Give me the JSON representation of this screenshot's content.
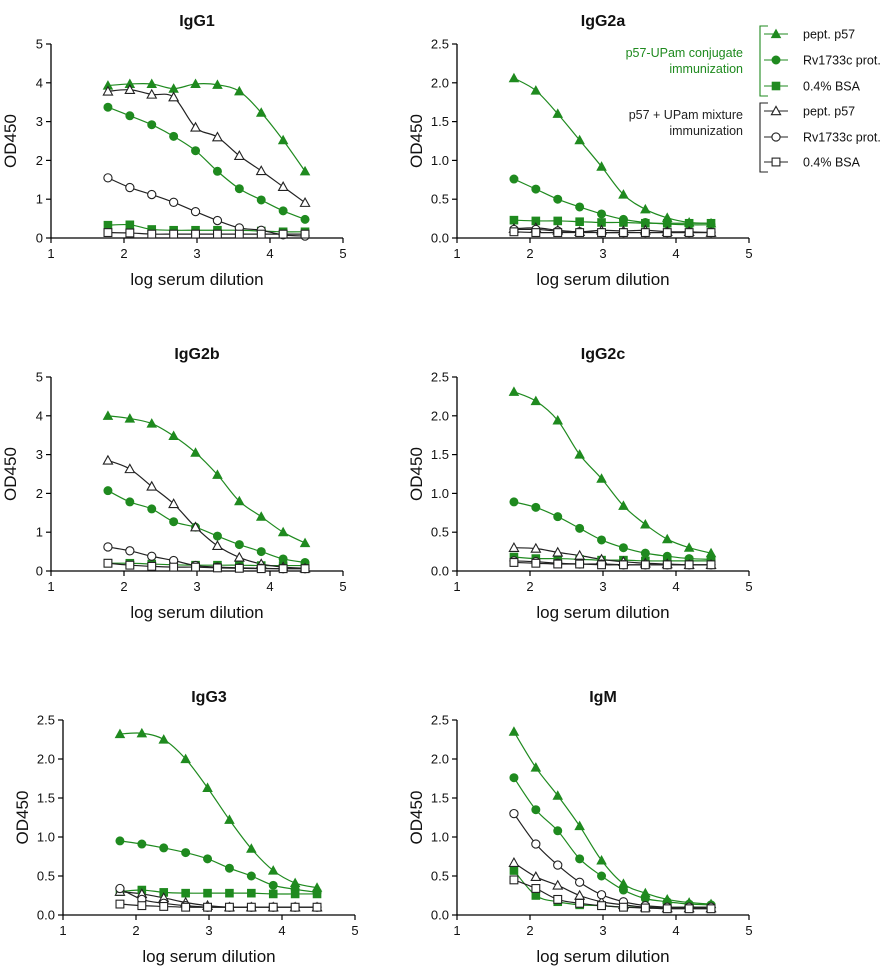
{
  "colors": {
    "conjugate": "#1f8a1f",
    "mixture": "#222222"
  },
  "legend": {
    "groups": [
      {
        "key": "conjugate",
        "title_lines": [
          "p57-UPam conjugate",
          "immunization"
        ],
        "items": [
          {
            "label": "pept. p57",
            "marker": "triangle",
            "filled": true
          },
          {
            "label": "Rv1733c prot.",
            "marker": "circle",
            "filled": true
          },
          {
            "label": "0.4% BSA",
            "marker": "square",
            "filled": true
          }
        ]
      },
      {
        "key": "mixture",
        "title_lines": [
          "p57 + UPam mixture",
          "immunization"
        ],
        "items": [
          {
            "label": "pept. p57",
            "marker": "triangle",
            "filled": false
          },
          {
            "label": "Rv1733c prot.",
            "marker": "circle",
            "filled": false
          },
          {
            "label": "0.4% BSA",
            "marker": "square",
            "filled": false
          }
        ]
      }
    ]
  },
  "chart_data": [
    {
      "type": "scatter",
      "title": "IgG1",
      "xlabel": "log serum dilution",
      "ylabel": "OD450",
      "xlim": [
        1,
        5
      ],
      "ylim": [
        0,
        5
      ],
      "xticks": [
        1,
        2,
        3,
        4,
        5
      ],
      "yticks": [
        0,
        1,
        2,
        3,
        4,
        5
      ],
      "ytick_labels": [
        "0",
        "1",
        "2",
        "3",
        "4",
        "5"
      ],
      "x": [
        1.78,
        2.08,
        2.38,
        2.68,
        2.98,
        3.28,
        3.58,
        3.88,
        4.18,
        4.48
      ],
      "series": [
        {
          "group": "conjugate",
          "marker": "triangle",
          "filled": true,
          "values": [
            3.93,
            3.97,
            3.97,
            3.85,
            3.97,
            3.95,
            3.78,
            3.23,
            2.52,
            1.72
          ]
        },
        {
          "group": "conjugate",
          "marker": "circle",
          "filled": true,
          "values": [
            3.37,
            3.15,
            2.92,
            2.62,
            2.25,
            1.72,
            1.27,
            0.98,
            0.7,
            0.48
          ]
        },
        {
          "group": "conjugate",
          "marker": "square",
          "filled": true,
          "values": [
            0.33,
            0.34,
            0.22,
            0.2,
            0.2,
            0.2,
            0.2,
            0.18,
            0.16,
            0.16
          ]
        },
        {
          "group": "mixture",
          "marker": "triangle",
          "filled": false,
          "values": [
            3.78,
            3.82,
            3.7,
            3.63,
            2.85,
            2.6,
            2.12,
            1.73,
            1.32,
            0.91
          ]
        },
        {
          "group": "mixture",
          "marker": "circle",
          "filled": false,
          "values": [
            1.55,
            1.3,
            1.12,
            0.92,
            0.68,
            0.45,
            0.26,
            0.2,
            0.08,
            0.05
          ]
        },
        {
          "group": "mixture",
          "marker": "square",
          "filled": false,
          "values": [
            0.14,
            0.13,
            0.1,
            0.1,
            0.1,
            0.1,
            0.1,
            0.1,
            0.1,
            0.1
          ]
        }
      ]
    },
    {
      "type": "scatter",
      "title": "IgG2a",
      "xlabel": "log serum dilution",
      "ylabel": "OD450",
      "xlim": [
        1,
        5
      ],
      "ylim": [
        0,
        2.5
      ],
      "xticks": [
        1,
        2,
        3,
        4,
        5
      ],
      "yticks": [
        0,
        0.5,
        1,
        1.5,
        2,
        2.5
      ],
      "ytick_labels": [
        "0.0",
        "0.5",
        "1.0",
        "1.5",
        "2.0",
        "2.5"
      ],
      "x": [
        1.78,
        2.08,
        2.38,
        2.68,
        2.98,
        3.28,
        3.58,
        3.88,
        4.18,
        4.48
      ],
      "series": [
        {
          "group": "conjugate",
          "marker": "triangle",
          "filled": true,
          "values": [
            2.06,
            1.9,
            1.6,
            1.26,
            0.92,
            0.56,
            0.37,
            0.26,
            0.2,
            0.19
          ]
        },
        {
          "group": "conjugate",
          "marker": "circle",
          "filled": true,
          "values": [
            0.76,
            0.63,
            0.5,
            0.4,
            0.31,
            0.24,
            0.2,
            0.18,
            0.17,
            0.17
          ]
        },
        {
          "group": "conjugate",
          "marker": "square",
          "filled": true,
          "values": [
            0.23,
            0.22,
            0.22,
            0.21,
            0.2,
            0.2,
            0.19,
            0.19,
            0.19,
            0.19
          ]
        },
        {
          "group": "mixture",
          "marker": "triangle",
          "filled": false,
          "values": [
            0.12,
            0.13,
            0.1,
            0.08,
            0.1,
            0.09,
            0.1,
            0.08,
            0.08,
            0.07
          ]
        },
        {
          "group": "mixture",
          "marker": "circle",
          "filled": false,
          "values": [
            0.11,
            0.11,
            0.09,
            0.08,
            0.07,
            0.07,
            0.07,
            0.07,
            0.07,
            0.07
          ]
        },
        {
          "group": "mixture",
          "marker": "square",
          "filled": false,
          "values": [
            0.08,
            0.07,
            0.07,
            0.07,
            0.07,
            0.07,
            0.07,
            0.07,
            0.07,
            0.07
          ]
        }
      ]
    },
    {
      "type": "scatter",
      "title": "IgG2b",
      "xlabel": "log serum dilution",
      "ylabel": "OD450",
      "xlim": [
        1,
        5
      ],
      "ylim": [
        0,
        5
      ],
      "xticks": [
        1,
        2,
        3,
        4,
        5
      ],
      "yticks": [
        0,
        1,
        2,
        3,
        4,
        5
      ],
      "ytick_labels": [
        "0",
        "1",
        "2",
        "3",
        "4",
        "5"
      ],
      "x": [
        1.78,
        2.08,
        2.38,
        2.68,
        2.98,
        3.28,
        3.58,
        3.88,
        4.18,
        4.48
      ],
      "series": [
        {
          "group": "conjugate",
          "marker": "triangle",
          "filled": true,
          "values": [
            4.0,
            3.93,
            3.8,
            3.48,
            3.05,
            2.48,
            1.8,
            1.4,
            1.0,
            0.72
          ]
        },
        {
          "group": "conjugate",
          "marker": "circle",
          "filled": true,
          "values": [
            2.07,
            1.78,
            1.6,
            1.27,
            1.13,
            0.9,
            0.68,
            0.5,
            0.31,
            0.22
          ]
        },
        {
          "group": "conjugate",
          "marker": "square",
          "filled": true,
          "values": [
            0.2,
            0.2,
            0.18,
            0.16,
            0.15,
            0.15,
            0.15,
            0.14,
            0.14,
            0.14
          ]
        },
        {
          "group": "mixture",
          "marker": "triangle",
          "filled": false,
          "values": [
            2.85,
            2.63,
            2.18,
            1.73,
            1.13,
            0.65,
            0.35,
            0.18,
            0.1,
            0.07
          ]
        },
        {
          "group": "mixture",
          "marker": "circle",
          "filled": false,
          "values": [
            0.62,
            0.52,
            0.38,
            0.27,
            0.14,
            0.1,
            0.08,
            0.07,
            0.06,
            0.06
          ]
        },
        {
          "group": "mixture",
          "marker": "square",
          "filled": false,
          "values": [
            0.2,
            0.15,
            0.12,
            0.1,
            0.1,
            0.08,
            0.07,
            0.06,
            0.06,
            0.06
          ]
        }
      ]
    },
    {
      "type": "scatter",
      "title": "IgG2c",
      "xlabel": "log serum dilution",
      "ylabel": "OD450",
      "xlim": [
        1,
        5
      ],
      "ylim": [
        0,
        2.5
      ],
      "xticks": [
        1,
        2,
        3,
        4,
        5
      ],
      "yticks": [
        0,
        0.5,
        1,
        1.5,
        2,
        2.5
      ],
      "ytick_labels": [
        "0.0",
        "0.5",
        "1.0",
        "1.5",
        "2.0",
        "2.5"
      ],
      "x": [
        1.78,
        2.08,
        2.38,
        2.68,
        2.98,
        3.28,
        3.58,
        3.88,
        4.18,
        4.48
      ],
      "series": [
        {
          "group": "conjugate",
          "marker": "triangle",
          "filled": true,
          "values": [
            2.31,
            2.19,
            1.94,
            1.5,
            1.19,
            0.84,
            0.6,
            0.41,
            0.3,
            0.23
          ]
        },
        {
          "group": "conjugate",
          "marker": "circle",
          "filled": true,
          "values": [
            0.89,
            0.82,
            0.7,
            0.55,
            0.4,
            0.3,
            0.23,
            0.19,
            0.16,
            0.15
          ]
        },
        {
          "group": "conjugate",
          "marker": "square",
          "filled": true,
          "values": [
            0.18,
            0.16,
            0.16,
            0.15,
            0.14,
            0.14,
            0.13,
            0.13,
            0.13,
            0.13
          ]
        },
        {
          "group": "mixture",
          "marker": "triangle",
          "filled": false,
          "values": [
            0.3,
            0.29,
            0.24,
            0.2,
            0.15,
            0.12,
            0.1,
            0.09,
            0.08,
            0.08
          ]
        },
        {
          "group": "mixture",
          "marker": "circle",
          "filled": false,
          "values": [
            0.13,
            0.12,
            0.1,
            0.09,
            0.09,
            0.08,
            0.08,
            0.08,
            0.08,
            0.08
          ]
        },
        {
          "group": "mixture",
          "marker": "square",
          "filled": false,
          "values": [
            0.11,
            0.1,
            0.09,
            0.09,
            0.08,
            0.08,
            0.08,
            0.08,
            0.08,
            0.08
          ]
        }
      ]
    },
    {
      "type": "scatter",
      "title": "IgG3",
      "xlabel": "log serum dilution",
      "ylabel": "OD450",
      "xlim": [
        1,
        5
      ],
      "ylim": [
        0,
        2.5
      ],
      "xticks": [
        1,
        2,
        3,
        4,
        5
      ],
      "yticks": [
        0,
        0.5,
        1,
        1.5,
        2,
        2.5
      ],
      "ytick_labels": [
        "0.0",
        "0.5",
        "1.0",
        "1.5",
        "2.0",
        "2.5"
      ],
      "x": [
        1.78,
        2.08,
        2.38,
        2.68,
        2.98,
        3.28,
        3.58,
        3.88,
        4.18,
        4.48
      ],
      "series": [
        {
          "group": "conjugate",
          "marker": "triangle",
          "filled": true,
          "values": [
            2.32,
            2.33,
            2.25,
            2.0,
            1.63,
            1.22,
            0.85,
            0.57,
            0.41,
            0.35
          ]
        },
        {
          "group": "conjugate",
          "marker": "circle",
          "filled": true,
          "values": [
            0.95,
            0.91,
            0.86,
            0.8,
            0.72,
            0.6,
            0.5,
            0.38,
            0.33,
            0.29
          ]
        },
        {
          "group": "conjugate",
          "marker": "square",
          "filled": true,
          "values": [
            0.3,
            0.32,
            0.29,
            0.28,
            0.28,
            0.28,
            0.28,
            0.27,
            0.27,
            0.27
          ]
        },
        {
          "group": "mixture",
          "marker": "triangle",
          "filled": false,
          "values": [
            0.3,
            0.27,
            0.22,
            0.16,
            0.12,
            0.1,
            0.1,
            0.1,
            0.1,
            0.1
          ]
        },
        {
          "group": "mixture",
          "marker": "circle",
          "filled": false,
          "values": [
            0.34,
            0.2,
            0.15,
            0.12,
            0.1,
            0.1,
            0.1,
            0.1,
            0.1,
            0.1
          ]
        },
        {
          "group": "mixture",
          "marker": "square",
          "filled": false,
          "values": [
            0.14,
            0.12,
            0.11,
            0.1,
            0.1,
            0.1,
            0.1,
            0.1,
            0.1,
            0.1
          ]
        }
      ]
    },
    {
      "type": "scatter",
      "title": "IgM",
      "xlabel": "log serum dilution",
      "ylabel": "OD450",
      "xlim": [
        1,
        5
      ],
      "ylim": [
        0,
        2.5
      ],
      "xticks": [
        1,
        2,
        3,
        4,
        5
      ],
      "yticks": [
        0,
        0.5,
        1,
        1.5,
        2,
        2.5
      ],
      "ytick_labels": [
        "0.0",
        "0.5",
        "1.0",
        "1.5",
        "2.0",
        "2.5"
      ],
      "x": [
        1.78,
        2.08,
        2.38,
        2.68,
        2.98,
        3.28,
        3.58,
        3.88,
        4.18,
        4.48
      ],
      "series": [
        {
          "group": "conjugate",
          "marker": "triangle",
          "filled": true,
          "values": [
            2.35,
            1.89,
            1.53,
            1.14,
            0.7,
            0.4,
            0.28,
            0.2,
            0.16,
            0.14
          ]
        },
        {
          "group": "conjugate",
          "marker": "circle",
          "filled": true,
          "values": [
            1.76,
            1.35,
            1.08,
            0.72,
            0.5,
            0.32,
            0.21,
            0.17,
            0.14,
            0.13
          ]
        },
        {
          "group": "conjugate",
          "marker": "square",
          "filled": true,
          "values": [
            0.57,
            0.25,
            0.17,
            0.13,
            0.12,
            0.1,
            0.1,
            0.1,
            0.1,
            0.1
          ]
        },
        {
          "group": "mixture",
          "marker": "triangle",
          "filled": false,
          "values": [
            0.67,
            0.49,
            0.38,
            0.25,
            0.17,
            0.13,
            0.1,
            0.09,
            0.09,
            0.09
          ]
        },
        {
          "group": "mixture",
          "marker": "circle",
          "filled": false,
          "values": [
            1.3,
            0.91,
            0.64,
            0.42,
            0.26,
            0.17,
            0.12,
            0.1,
            0.1,
            0.1
          ]
        },
        {
          "group": "mixture",
          "marker": "square",
          "filled": false,
          "values": [
            0.45,
            0.34,
            0.2,
            0.15,
            0.12,
            0.1,
            0.09,
            0.08,
            0.08,
            0.08
          ]
        }
      ]
    }
  ]
}
